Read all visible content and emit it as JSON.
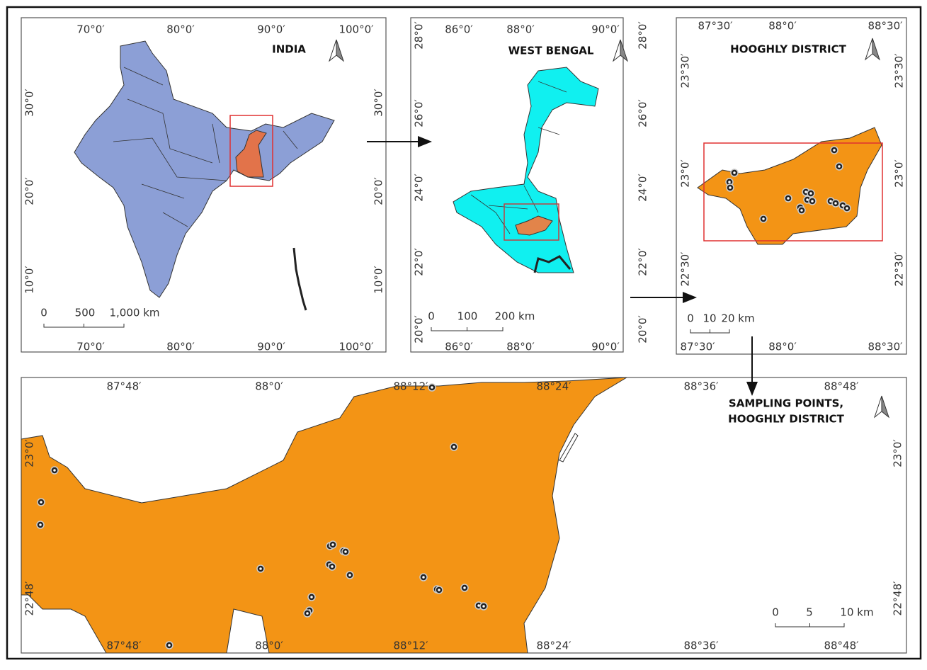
{
  "panels": [
    {
      "title": "INDIA",
      "top_labels": [
        "70°0′",
        "80°0′",
        "90°0′",
        "100°0′"
      ],
      "bottom_labels": [
        "70°0′",
        "80°0′",
        "90°0′",
        "100°0′"
      ],
      "left_labels": [
        "30°0′",
        "20°0′",
        "10°0′"
      ],
      "right_labels": [
        "30°0′",
        "20°0′",
        "10°0′"
      ],
      "scale_labels": [
        "0",
        "500",
        "1,000 km"
      ]
    },
    {
      "title": "WEST BENGAL",
      "top_labels": [
        "86°0′",
        "88°0′",
        "90°0′"
      ],
      "bottom_labels": [
        "86°0′",
        "88°0′",
        "90°0′"
      ],
      "left_labels": [
        "28°0′",
        "26°0′",
        "24°0′",
        "22°0′",
        "20°0′"
      ],
      "right_labels": [
        "28°0′",
        "26°0′",
        "24°0′",
        "22°0′",
        "20°0′"
      ],
      "scale_labels": [
        "0",
        "100",
        "200 km"
      ]
    },
    {
      "title": "HOOGHLY DISTRICT",
      "top_labels": [
        "87°30′",
        "88°0′",
        "88°30′"
      ],
      "bottom_labels": [
        "87°30′",
        "88°0′",
        "88°30′"
      ],
      "left_labels": [
        "23°30′",
        "23°0′",
        "22°30′"
      ],
      "right_labels": [
        "23°30′",
        "23°0′",
        "22°30′"
      ],
      "scale_labels": [
        "0",
        "10",
        "20 km"
      ]
    },
    {
      "title_lines": [
        "SAMPLING POINTS,",
        "HOOGHLY DISTRICT"
      ],
      "top_labels": [
        "87°48′",
        "88°0′",
        "88°12′",
        "88°24′",
        "88°36′",
        "88°48′"
      ],
      "bottom_labels": [
        "87°48′",
        "88°0′",
        "88°12′",
        "88°24′",
        "88°36′",
        "88°48′"
      ],
      "left_labels": [
        "23°0′",
        "22°48′"
      ],
      "right_labels": [
        "23°0′",
        "22°48′"
      ],
      "scale_labels": [
        "0",
        "5",
        "10 km"
      ]
    }
  ]
}
